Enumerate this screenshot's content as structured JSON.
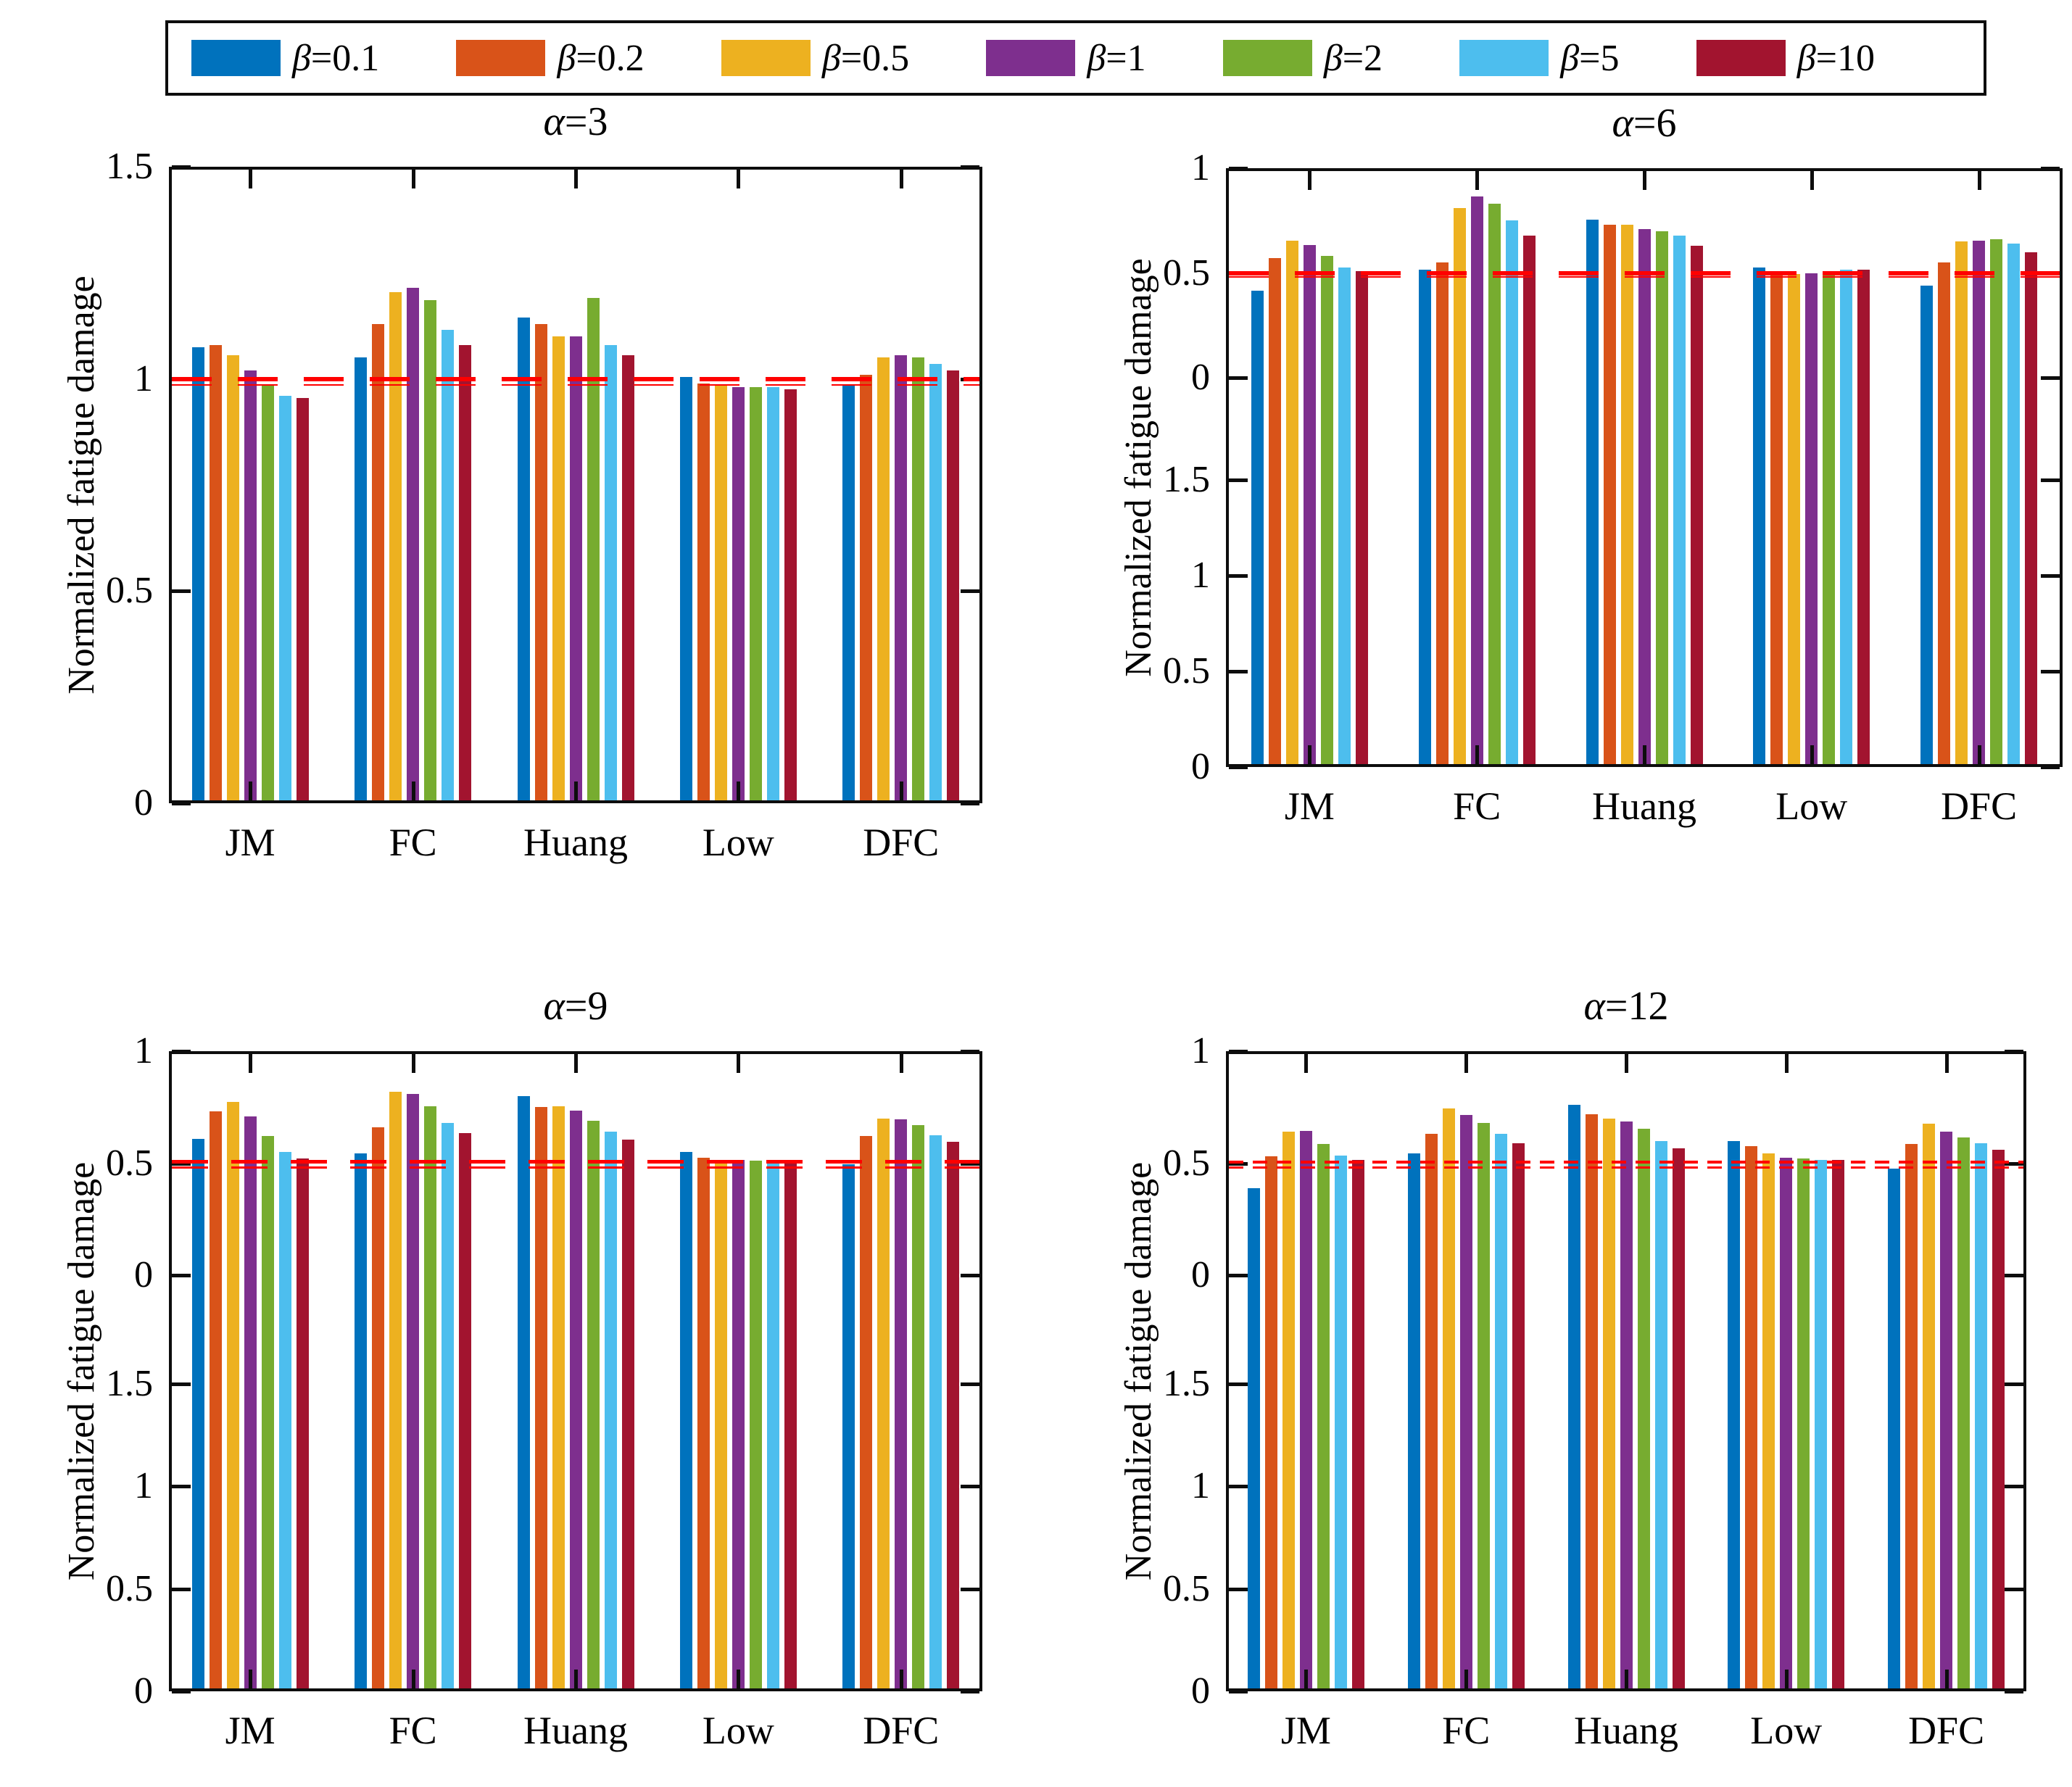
{
  "chart_data": {
    "type": "bar",
    "ylabel": "Normalized fatigue damage",
    "categories": [
      "JM",
      "FC",
      "Huang",
      "Low",
      "DFC"
    ],
    "series": [
      {
        "label": "β=0.1",
        "color": "#0072BD"
      },
      {
        "label": "β=0.2",
        "color": "#D95319"
      },
      {
        "label": "β=0.5",
        "color": "#EDB120"
      },
      {
        "label": "β=1",
        "color": "#7E2F8E"
      },
      {
        "label": "β=2",
        "color": "#77AC30"
      },
      {
        "label": "β=5",
        "color": "#4DBEEE"
      },
      {
        "label": "β=10",
        "color": "#A2142F"
      }
    ],
    "legend_position": "top",
    "reference_line_color": "#FF0000",
    "panels": [
      {
        "title": "α=3",
        "axis_style": "single",
        "y_axis": {
          "ticks": [
            "1.5",
            "1",
            "0.5",
            "0"
          ],
          "range": [
            0,
            1.5
          ]
        },
        "reference_lines": [
          1.0,
          0.985
        ],
        "values": {
          "JM": [
            1.075,
            1.08,
            1.055,
            1.02,
            0.985,
            0.96,
            0.955
          ],
          "FC": [
            1.05,
            1.13,
            1.205,
            1.215,
            1.185,
            1.115,
            1.08
          ],
          "Huang": [
            1.145,
            1.13,
            1.1,
            1.1,
            1.19,
            1.08,
            1.055
          ],
          "Low": [
            1.005,
            0.99,
            0.985,
            0.98,
            0.98,
            0.98,
            0.975
          ],
          "DFC": [
            0.985,
            1.01,
            1.05,
            1.055,
            1.05,
            1.035,
            1.02
          ]
        }
      },
      {
        "title": "α=6",
        "axis_style": "stacked",
        "y_axis_upper": {
          "ticks": [
            "1",
            "0.5",
            "0"
          ],
          "range": [
            0,
            1
          ]
        },
        "y_axis_lower": {
          "ticks": [
            "1.5",
            "1",
            "0.5",
            "0"
          ],
          "range": [
            0,
            1.5
          ]
        },
        "reference_lines": [
          0.5,
          0.48
        ],
        "values": {
          "JM": [
            0.415,
            0.57,
            0.655,
            0.635,
            0.58,
            0.525,
            0.51
          ],
          "FC": [
            0.515,
            0.55,
            0.81,
            0.865,
            0.83,
            0.75,
            0.68
          ],
          "Huang": [
            0.755,
            0.73,
            0.73,
            0.71,
            0.7,
            0.68,
            0.63
          ],
          "Low": [
            0.525,
            0.51,
            0.495,
            0.5,
            0.505,
            0.515,
            0.515
          ],
          "DFC": [
            0.44,
            0.55,
            0.65,
            0.655,
            0.66,
            0.64,
            0.6
          ]
        }
      },
      {
        "title": "α=9",
        "axis_style": "stacked",
        "y_axis_upper": {
          "ticks": [
            "1",
            "0.5",
            "0"
          ],
          "range": [
            0,
            1
          ]
        },
        "y_axis_lower": {
          "ticks": [
            "1.5",
            "1",
            "0.5",
            "0"
          ],
          "range": [
            0,
            1.5
          ]
        },
        "reference_lines": [
          0.505,
          0.48
        ],
        "values": {
          "JM": [
            0.61,
            0.73,
            0.775,
            0.71,
            0.62,
            0.55,
            0.52
          ],
          "FC": [
            0.545,
            0.66,
            0.82,
            0.81,
            0.755,
            0.68,
            0.635
          ],
          "Huang": [
            0.8,
            0.75,
            0.755,
            0.735,
            0.69,
            0.64,
            0.605
          ],
          "Low": [
            0.55,
            0.525,
            0.515,
            0.515,
            0.51,
            0.515,
            0.51
          ],
          "DFC": [
            0.495,
            0.62,
            0.7,
            0.695,
            0.67,
            0.625,
            0.595
          ]
        }
      },
      {
        "title": "α=12",
        "axis_style": "stacked",
        "y_axis_upper": {
          "ticks": [
            "1",
            "0.5",
            "0"
          ],
          "range": [
            0,
            1
          ]
        },
        "y_axis_lower": {
          "ticks": [
            "1.5",
            "1",
            "0.5",
            "0"
          ],
          "range": [
            0,
            1.5
          ]
        },
        "reference_lines": [
          0.505,
          0.48
        ],
        "values": {
          "JM": [
            0.39,
            0.53,
            0.64,
            0.645,
            0.585,
            0.535,
            0.515
          ],
          "FC": [
            0.545,
            0.63,
            0.745,
            0.715,
            0.68,
            0.63,
            0.59
          ],
          "Huang": [
            0.76,
            0.72,
            0.7,
            0.685,
            0.655,
            0.6,
            0.565
          ],
          "Low": [
            0.6,
            0.575,
            0.545,
            0.525,
            0.52,
            0.515,
            0.515
          ],
          "DFC": [
            0.475,
            0.585,
            0.675,
            0.64,
            0.615,
            0.59,
            0.56
          ]
        }
      }
    ]
  }
}
